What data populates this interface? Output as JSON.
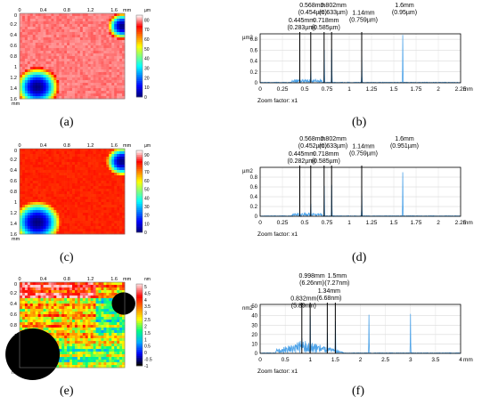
{
  "panel_labels": [
    "(a)",
    "(b)",
    "(c)",
    "(d)",
    "(e)",
    "(f)"
  ],
  "colormaps": {
    "jet": [
      "#00007f",
      "#0000ff",
      "#007fff",
      "#00ffff",
      "#7fff7f",
      "#ffff00",
      "#ff7f00",
      "#ff0000",
      "#7f0000"
    ],
    "rainbow": [
      "#000000",
      "#0000ff",
      "#00b0ff",
      "#00ff80",
      "#ffff00",
      "#ff8000",
      "#ff0000",
      "#ffd0d0"
    ]
  },
  "chart_data": [
    {
      "type": "heatmap",
      "panel": "(a)",
      "x_axis": {
        "unit": "mm",
        "ticks": [
          "0",
          "0.4",
          "0.8",
          "1.2",
          "1.6"
        ]
      },
      "y_axis": {
        "unit": "mm",
        "ticks": [
          "0.2",
          "0.4",
          "0.6",
          "0.8",
          "1",
          "1.2",
          "1.4",
          "1.6"
        ]
      },
      "colorbar": {
        "unit": "µm",
        "ticks": [
          "0",
          "10",
          "20",
          "30",
          "40",
          "50",
          "60",
          "70",
          "80"
        ],
        "range": [
          0,
          85
        ]
      },
      "background_level": 80,
      "features": [
        {
          "cx": 0.3,
          "cy": 1.38,
          "r": 0.36,
          "min": 0
        },
        {
          "cx": 1.74,
          "cy": 0.24,
          "r": 0.24,
          "min": 0
        }
      ]
    },
    {
      "type": "line",
      "panel": "(b)",
      "xlim": [
        0,
        2.25
      ],
      "ylim": [
        0,
        0.9
      ],
      "x_unit": "mm",
      "y_unit": "µm2",
      "x_ticks": [
        "0",
        "0.25",
        "0.5",
        "0.75",
        "1",
        "1.25",
        "1.5",
        "1.75",
        "2",
        "2.25"
      ],
      "y_ticks": [
        "0",
        "0.2",
        "0.4",
        "0.6",
        "0.8"
      ],
      "footer": "Zoom factor: x1",
      "markers": [
        0.445,
        0.568,
        0.718,
        0.802,
        1.14
      ],
      "peaks": [
        {
          "x": 0.445,
          "h": 0.08
        },
        {
          "x": 0.48,
          "h": 0.06
        },
        {
          "x": 0.568,
          "h": 0.22
        },
        {
          "x": 0.72,
          "h": 0.6
        },
        {
          "x": 0.802,
          "h": 0.62
        },
        {
          "x": 1.14,
          "h": 0.5
        },
        {
          "x": 1.6,
          "h": 0.88
        }
      ],
      "annotations": [
        {
          "lines": [
            "0.568mm",
            "(0.454µm)"
          ],
          "x": 0.568,
          "row": 0
        },
        {
          "lines": [
            "0.802mm",
            "(0.633µm)"
          ],
          "x": 0.802,
          "row": 0
        },
        {
          "lines": [
            "0.445mm",
            "(0.283µm)"
          ],
          "x": 0.445,
          "row": 1
        },
        {
          "lines": [
            "0.718mm",
            "(0.585µm)"
          ],
          "x": 0.718,
          "row": 1
        },
        {
          "lines": [
            "1.14mm",
            "(0.759µm)"
          ],
          "x": 1.14,
          "row": 0.5
        },
        {
          "lines": [
            "1.6mm",
            "(0.95µm)"
          ],
          "x": 1.6,
          "row": 0
        }
      ]
    },
    {
      "type": "heatmap",
      "panel": "(c)",
      "x_axis": {
        "unit": "mm",
        "ticks": [
          "0",
          "0.4",
          "0.8",
          "1.2",
          "1.6"
        ]
      },
      "y_axis": {
        "unit": "mm",
        "ticks": [
          "0.2",
          "0.4",
          "0.6",
          "0.8",
          "1",
          "1.2",
          "1.4",
          "1.6"
        ]
      },
      "colorbar": {
        "unit": "µm",
        "ticks": [
          "0",
          "10",
          "20",
          "30",
          "40",
          "50",
          "60",
          "70",
          "80",
          "90"
        ],
        "range": [
          0,
          95
        ]
      },
      "background_level": 80,
      "features": [
        {
          "cx": 0.3,
          "cy": 1.38,
          "r": 0.38,
          "min": 0
        },
        {
          "cx": 1.74,
          "cy": 0.24,
          "r": 0.26,
          "min": 0
        }
      ]
    },
    {
      "type": "line",
      "panel": "(d)",
      "xlim": [
        0,
        2.25
      ],
      "ylim": [
        0,
        1.0
      ],
      "x_unit": "mm",
      "y_unit": "µm2",
      "x_ticks": [
        "0",
        "0.25",
        "0.5",
        "0.75",
        "1",
        "1.25",
        "1.5",
        "1.75",
        "2",
        "2.25"
      ],
      "y_ticks": [
        "0",
        "0.2",
        "0.4",
        "0.6",
        "0.8"
      ],
      "footer": "Zoom factor: x1",
      "markers": [
        0.445,
        0.568,
        0.718,
        0.802,
        1.14
      ],
      "peaks": [
        {
          "x": 0.445,
          "h": 0.1
        },
        {
          "x": 0.5,
          "h": 0.08
        },
        {
          "x": 0.568,
          "h": 0.26
        },
        {
          "x": 0.72,
          "h": 0.62
        },
        {
          "x": 0.802,
          "h": 0.64
        },
        {
          "x": 1.14,
          "h": 0.52
        },
        {
          "x": 1.6,
          "h": 0.9
        }
      ],
      "annotations": [
        {
          "lines": [
            "0.568mm",
            "(0.452µm)"
          ],
          "x": 0.568,
          "row": 0
        },
        {
          "lines": [
            "0.802mm",
            "(0.633µm)"
          ],
          "x": 0.802,
          "row": 0
        },
        {
          "lines": [
            "0.445mm",
            "(0.282µm)"
          ],
          "x": 0.445,
          "row": 1
        },
        {
          "lines": [
            "0.718mm",
            "(0.585µm)"
          ],
          "x": 0.718,
          "row": 1
        },
        {
          "lines": [
            "1.14mm",
            "(0.759µm)"
          ],
          "x": 1.14,
          "row": 0.5
        },
        {
          "lines": [
            "1.6mm",
            "(0.951µm)"
          ],
          "x": 1.6,
          "row": 0
        }
      ]
    },
    {
      "type": "heatmap",
      "panel": "(e)",
      "x_axis": {
        "unit": "mm",
        "ticks": [
          "0",
          "0.4",
          "0.8",
          "1.2",
          "1.6"
        ]
      },
      "y_axis": {
        "unit": "mm",
        "ticks": [
          "0.2",
          "0.4",
          "0.6",
          "0.8",
          "1",
          "1.2",
          "1.4",
          "1.6"
        ]
      },
      "colorbar": {
        "unit": "nm",
        "ticks": [
          "-1",
          "-0.5",
          "0",
          "0.5",
          "1",
          "1.5",
          "2",
          "2.5",
          "3",
          "3.5",
          "4",
          "4.5",
          "5"
        ],
        "range": [
          -1,
          5.2
        ]
      },
      "masks": [
        {
          "cx": 0.22,
          "cy": 1.35,
          "r": 0.46
        },
        {
          "cx": 1.76,
          "cy": 0.4,
          "r": 0.2
        }
      ]
    },
    {
      "type": "line",
      "panel": "(f)",
      "xlim": [
        0,
        4
      ],
      "ylim": [
        0,
        52
      ],
      "x_unit": "mm",
      "y_unit": "nm2",
      "x_ticks": [
        "0",
        "0.5",
        "1",
        "1.5",
        "2",
        "2.5",
        "3",
        "3.5",
        "4"
      ],
      "y_ticks": [
        "0",
        "10",
        "20",
        "30",
        "40",
        "50"
      ],
      "footer": "Zoom factor: x1",
      "markers": [
        0.832,
        0.998,
        1.34,
        1.5
      ],
      "peaks": [
        {
          "x": 0.832,
          "h": 16
        },
        {
          "x": 0.998,
          "h": 40
        },
        {
          "x": 1.34,
          "h": 22
        },
        {
          "x": 1.5,
          "h": 34
        },
        {
          "x": 2.17,
          "h": 41
        },
        {
          "x": 3.0,
          "h": 42
        }
      ],
      "annotations": [
        {
          "lines": [
            "0.998mm",
            "(6.26nm)"
          ],
          "x": 0.998,
          "row": 0
        },
        {
          "lines": [
            "1.5mm",
            "(7.27nm)"
          ],
          "x": 1.5,
          "row": 0
        },
        {
          "lines": [
            "1.34mm",
            "(6.68nm)"
          ],
          "x": 1.34,
          "row": 1
        },
        {
          "lines": [
            "0.832mm",
            "(5.89nm)"
          ],
          "x": 0.832,
          "row": 1.5
        }
      ]
    }
  ]
}
